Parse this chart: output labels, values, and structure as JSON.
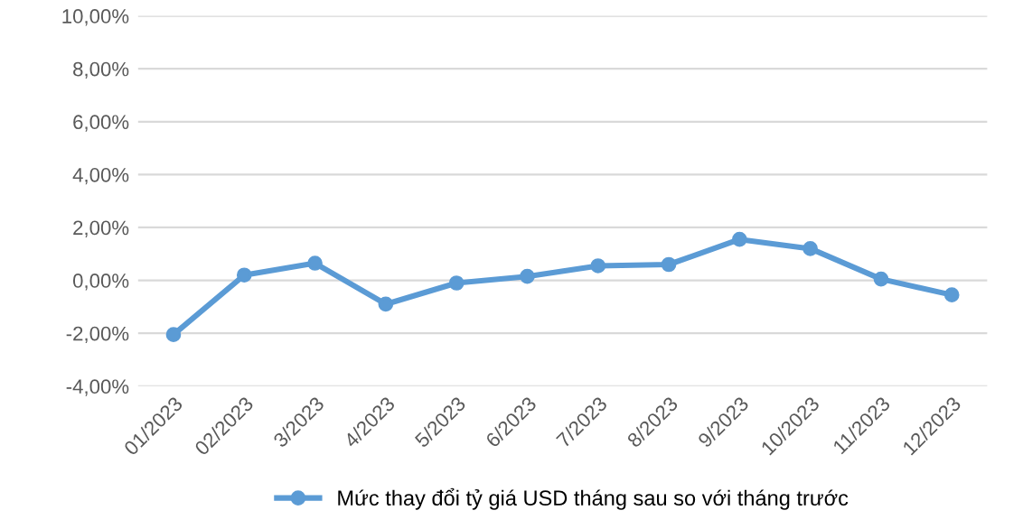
{
  "chart_data": {
    "type": "line",
    "categories": [
      "01/2023",
      "02/2023",
      "3/2023",
      "4/2023",
      "5/2023",
      "6/2023",
      "7/2023",
      "8/2023",
      "9/2023",
      "10/2023",
      "11/2023",
      "12/2023"
    ],
    "series": [
      {
        "name": "Mức thay đổi tỷ giá USD tháng sau so với tháng trước",
        "color": "#5b9bd5",
        "values": [
          -2.05,
          0.2,
          0.65,
          -0.9,
          -0.1,
          0.15,
          0.55,
          0.6,
          1.55,
          1.2,
          0.05,
          -0.55
        ]
      }
    ],
    "ylim": [
      -4,
      10
    ],
    "yticks": [
      {
        "value": -4,
        "label": "-4,00%"
      },
      {
        "value": -2,
        "label": "-2,00%"
      },
      {
        "value": 0,
        "label": "0,00%"
      },
      {
        "value": 2,
        "label": "2,00%"
      },
      {
        "value": 4,
        "label": "4,00%"
      },
      {
        "value": 6,
        "label": "6,00%"
      },
      {
        "value": 8,
        "label": "8,00%"
      },
      {
        "value": 10,
        "label": "10,00%"
      }
    ],
    "grid": "y",
    "legend": "bottom",
    "marker": "circle",
    "line_style": "solid"
  }
}
